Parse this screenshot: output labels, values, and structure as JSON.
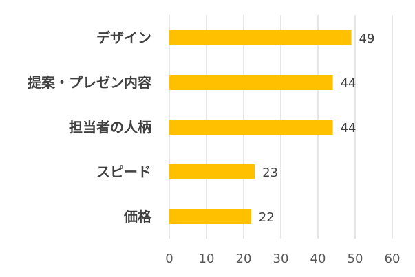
{
  "chart_data": {
    "type": "bar",
    "orientation": "horizontal",
    "categories": [
      "デザイン",
      "提案・プレゼン内容",
      "担当者の人柄",
      "スピード",
      "価格"
    ],
    "values": [
      49,
      44,
      44,
      23,
      22
    ],
    "data_labels": [
      "49",
      "44",
      "44",
      "23",
      "22"
    ],
    "xlim": [
      0,
      60
    ],
    "xticks": [
      0,
      10,
      20,
      30,
      40,
      50,
      60
    ],
    "xtick_labels": [
      "0",
      "10",
      "20",
      "30",
      "40",
      "50",
      "60"
    ],
    "grid": "vertical",
    "legend": "none",
    "bar_color": "#FFC000"
  }
}
